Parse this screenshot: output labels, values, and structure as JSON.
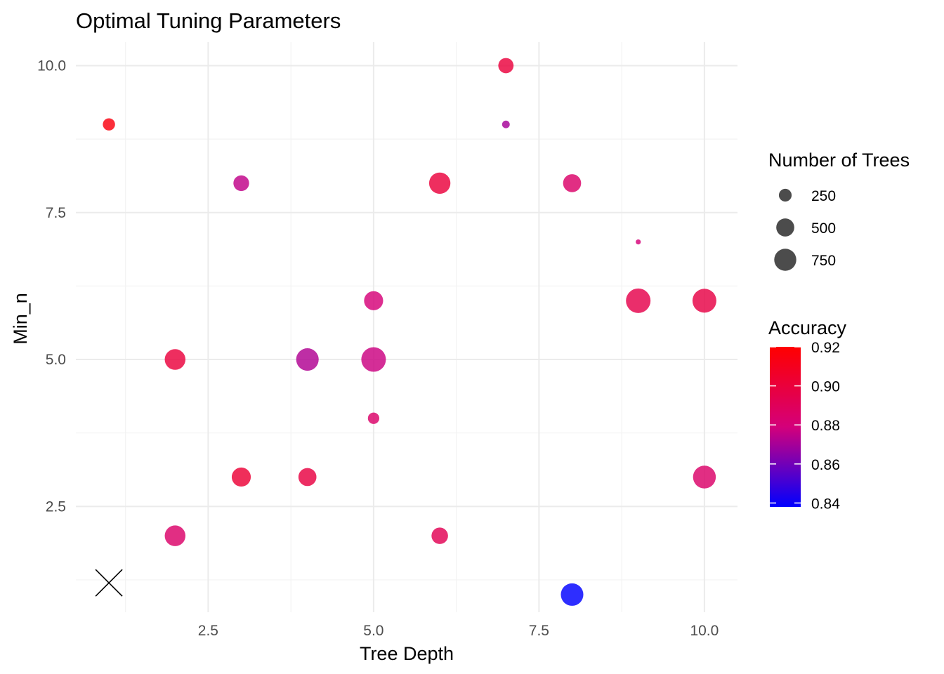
{
  "chart_data": {
    "type": "scatter",
    "title": "Optimal Tuning Parameters",
    "xlabel": "Tree Depth",
    "ylabel": "Min_n",
    "xlim": [
      0.5,
      10.5
    ],
    "ylim": [
      0.7,
      10.4
    ],
    "x_ticks": [
      2.5,
      5.0,
      7.5,
      10.0
    ],
    "y_ticks": [
      2.5,
      5.0,
      7.5,
      10.0
    ],
    "x_tick_labels": [
      "2.5",
      "5.0",
      "7.5",
      "10.0"
    ],
    "y_tick_labels": [
      "2.5",
      "5.0",
      "7.5",
      "10.0"
    ],
    "grid": true,
    "colors": {
      "low": "#0000ff",
      "mid": "#d4007a",
      "high": "#ff0000"
    },
    "points": [
      {
        "x": 1,
        "y": 9,
        "trees": 230,
        "accuracy": 0.915
      },
      {
        "x": 2,
        "y": 5,
        "trees": 660,
        "accuracy": 0.9
      },
      {
        "x": 2,
        "y": 2,
        "trees": 660,
        "accuracy": 0.885
      },
      {
        "x": 3,
        "y": 8,
        "trees": 380,
        "accuracy": 0.875
      },
      {
        "x": 3,
        "y": 3,
        "trees": 560,
        "accuracy": 0.902
      },
      {
        "x": 4,
        "y": 5,
        "trees": 780,
        "accuracy": 0.872
      },
      {
        "x": 4,
        "y": 3,
        "trees": 500,
        "accuracy": 0.898
      },
      {
        "x": 5,
        "y": 6,
        "trees": 560,
        "accuracy": 0.88
      },
      {
        "x": 5,
        "y": 5,
        "trees": 930,
        "accuracy": 0.877
      },
      {
        "x": 5,
        "y": 4,
        "trees": 200,
        "accuracy": 0.885
      },
      {
        "x": 6,
        "y": 8,
        "trees": 700,
        "accuracy": 0.9
      },
      {
        "x": 6,
        "y": 2,
        "trees": 420,
        "accuracy": 0.892
      },
      {
        "x": 7,
        "y": 10,
        "trees": 360,
        "accuracy": 0.9
      },
      {
        "x": 7,
        "y": 9,
        "trees": 90,
        "accuracy": 0.87
      },
      {
        "x": 8,
        "y": 8,
        "trees": 500,
        "accuracy": 0.885
      },
      {
        "x": 8,
        "y": 1,
        "trees": 780,
        "accuracy": 0.838
      },
      {
        "x": 9,
        "y": 7,
        "trees": 40,
        "accuracy": 0.88
      },
      {
        "x": 9,
        "y": 6,
        "trees": 930,
        "accuracy": 0.895
      },
      {
        "x": 10,
        "y": 6,
        "trees": 880,
        "accuracy": 0.897
      },
      {
        "x": 10,
        "y": 3,
        "trees": 800,
        "accuracy": 0.885
      }
    ],
    "markers": [
      {
        "x": 1,
        "y": 1.2,
        "shape": "cross"
      }
    ],
    "legend_size": {
      "title": "Number of Trees",
      "entries": [
        {
          "label": "250",
          "trees": 250
        },
        {
          "label": "500",
          "trees": 500
        },
        {
          "label": "750",
          "trees": 750
        }
      ]
    },
    "legend_color": {
      "title": "Accuracy",
      "range": [
        0.838,
        0.92
      ],
      "ticks": [
        0.84,
        0.86,
        0.88,
        0.9,
        0.92
      ],
      "tick_labels": [
        "0.84",
        "0.86",
        "0.88",
        "0.90",
        "0.92"
      ]
    },
    "legend_position": "right"
  }
}
